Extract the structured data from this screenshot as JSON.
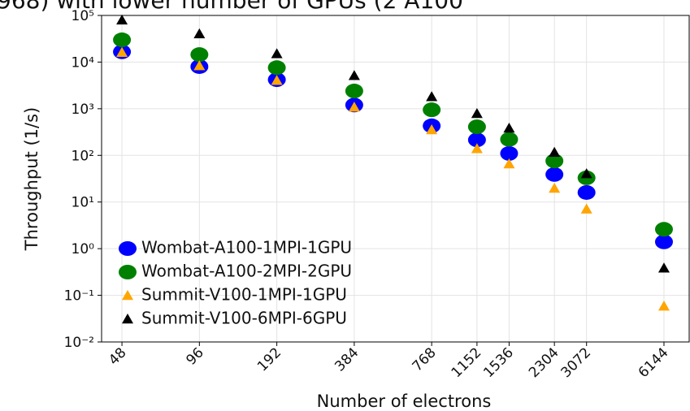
{
  "chart_data": {
    "type": "scatter",
    "title": "968) with lower number of GPUs (2 A100",
    "xlabel": "Number of electrons",
    "ylabel": "Throughput (1/s)",
    "x": [
      48,
      96,
      192,
      384,
      768,
      1152,
      1536,
      2304,
      3072,
      6144
    ],
    "xlim": [
      40,
      7700
    ],
    "xlog": true,
    "xticks": [
      48,
      96,
      192,
      384,
      768,
      1152,
      1536,
      2304,
      3072,
      6144
    ],
    "ylim": [
      0.01,
      100000
    ],
    "ylog": true,
    "yticks": [
      {
        "value": 0.01,
        "label": "10⁻²"
      },
      {
        "value": 0.1,
        "label": "10⁻¹"
      },
      {
        "value": 1,
        "label": "10⁰"
      },
      {
        "value": 10,
        "label": "10¹"
      },
      {
        "value": 100,
        "label": "10²"
      },
      {
        "value": 1000,
        "label": "10³"
      },
      {
        "value": 10000,
        "label": "10⁴"
      },
      {
        "value": 100000,
        "label": "10⁵"
      }
    ],
    "grid": true,
    "legend": "lower left",
    "series": [
      {
        "name": "Wombat-A100-1MPI-1GPU",
        "color": "#0000ff",
        "marker": "circle",
        "values": [
          16600,
          8000,
          4200,
          1200,
          430,
          215,
          110,
          39,
          16,
          1.4
        ]
      },
      {
        "name": "Wombat-A100-2MPI-2GPU",
        "color": "#008000",
        "marker": "circle",
        "values": [
          30000,
          14500,
          7600,
          2400,
          950,
          410,
          220,
          76,
          33,
          2.6
        ]
      },
      {
        "name": "Summit-V100-1MPI-1GPU",
        "color": "#ffa500",
        "marker": "triangle",
        "values": [
          16000,
          8300,
          4000,
          1070,
          350,
          138,
          65,
          19.5,
          7,
          0.058
        ]
      },
      {
        "name": "Summit-V100-6MPI-6GPU",
        "color": "#000000",
        "marker": "triangle",
        "values": [
          79000,
          40000,
          15000,
          5100,
          1800,
          780,
          380,
          115,
          40,
          0.38
        ]
      }
    ]
  }
}
